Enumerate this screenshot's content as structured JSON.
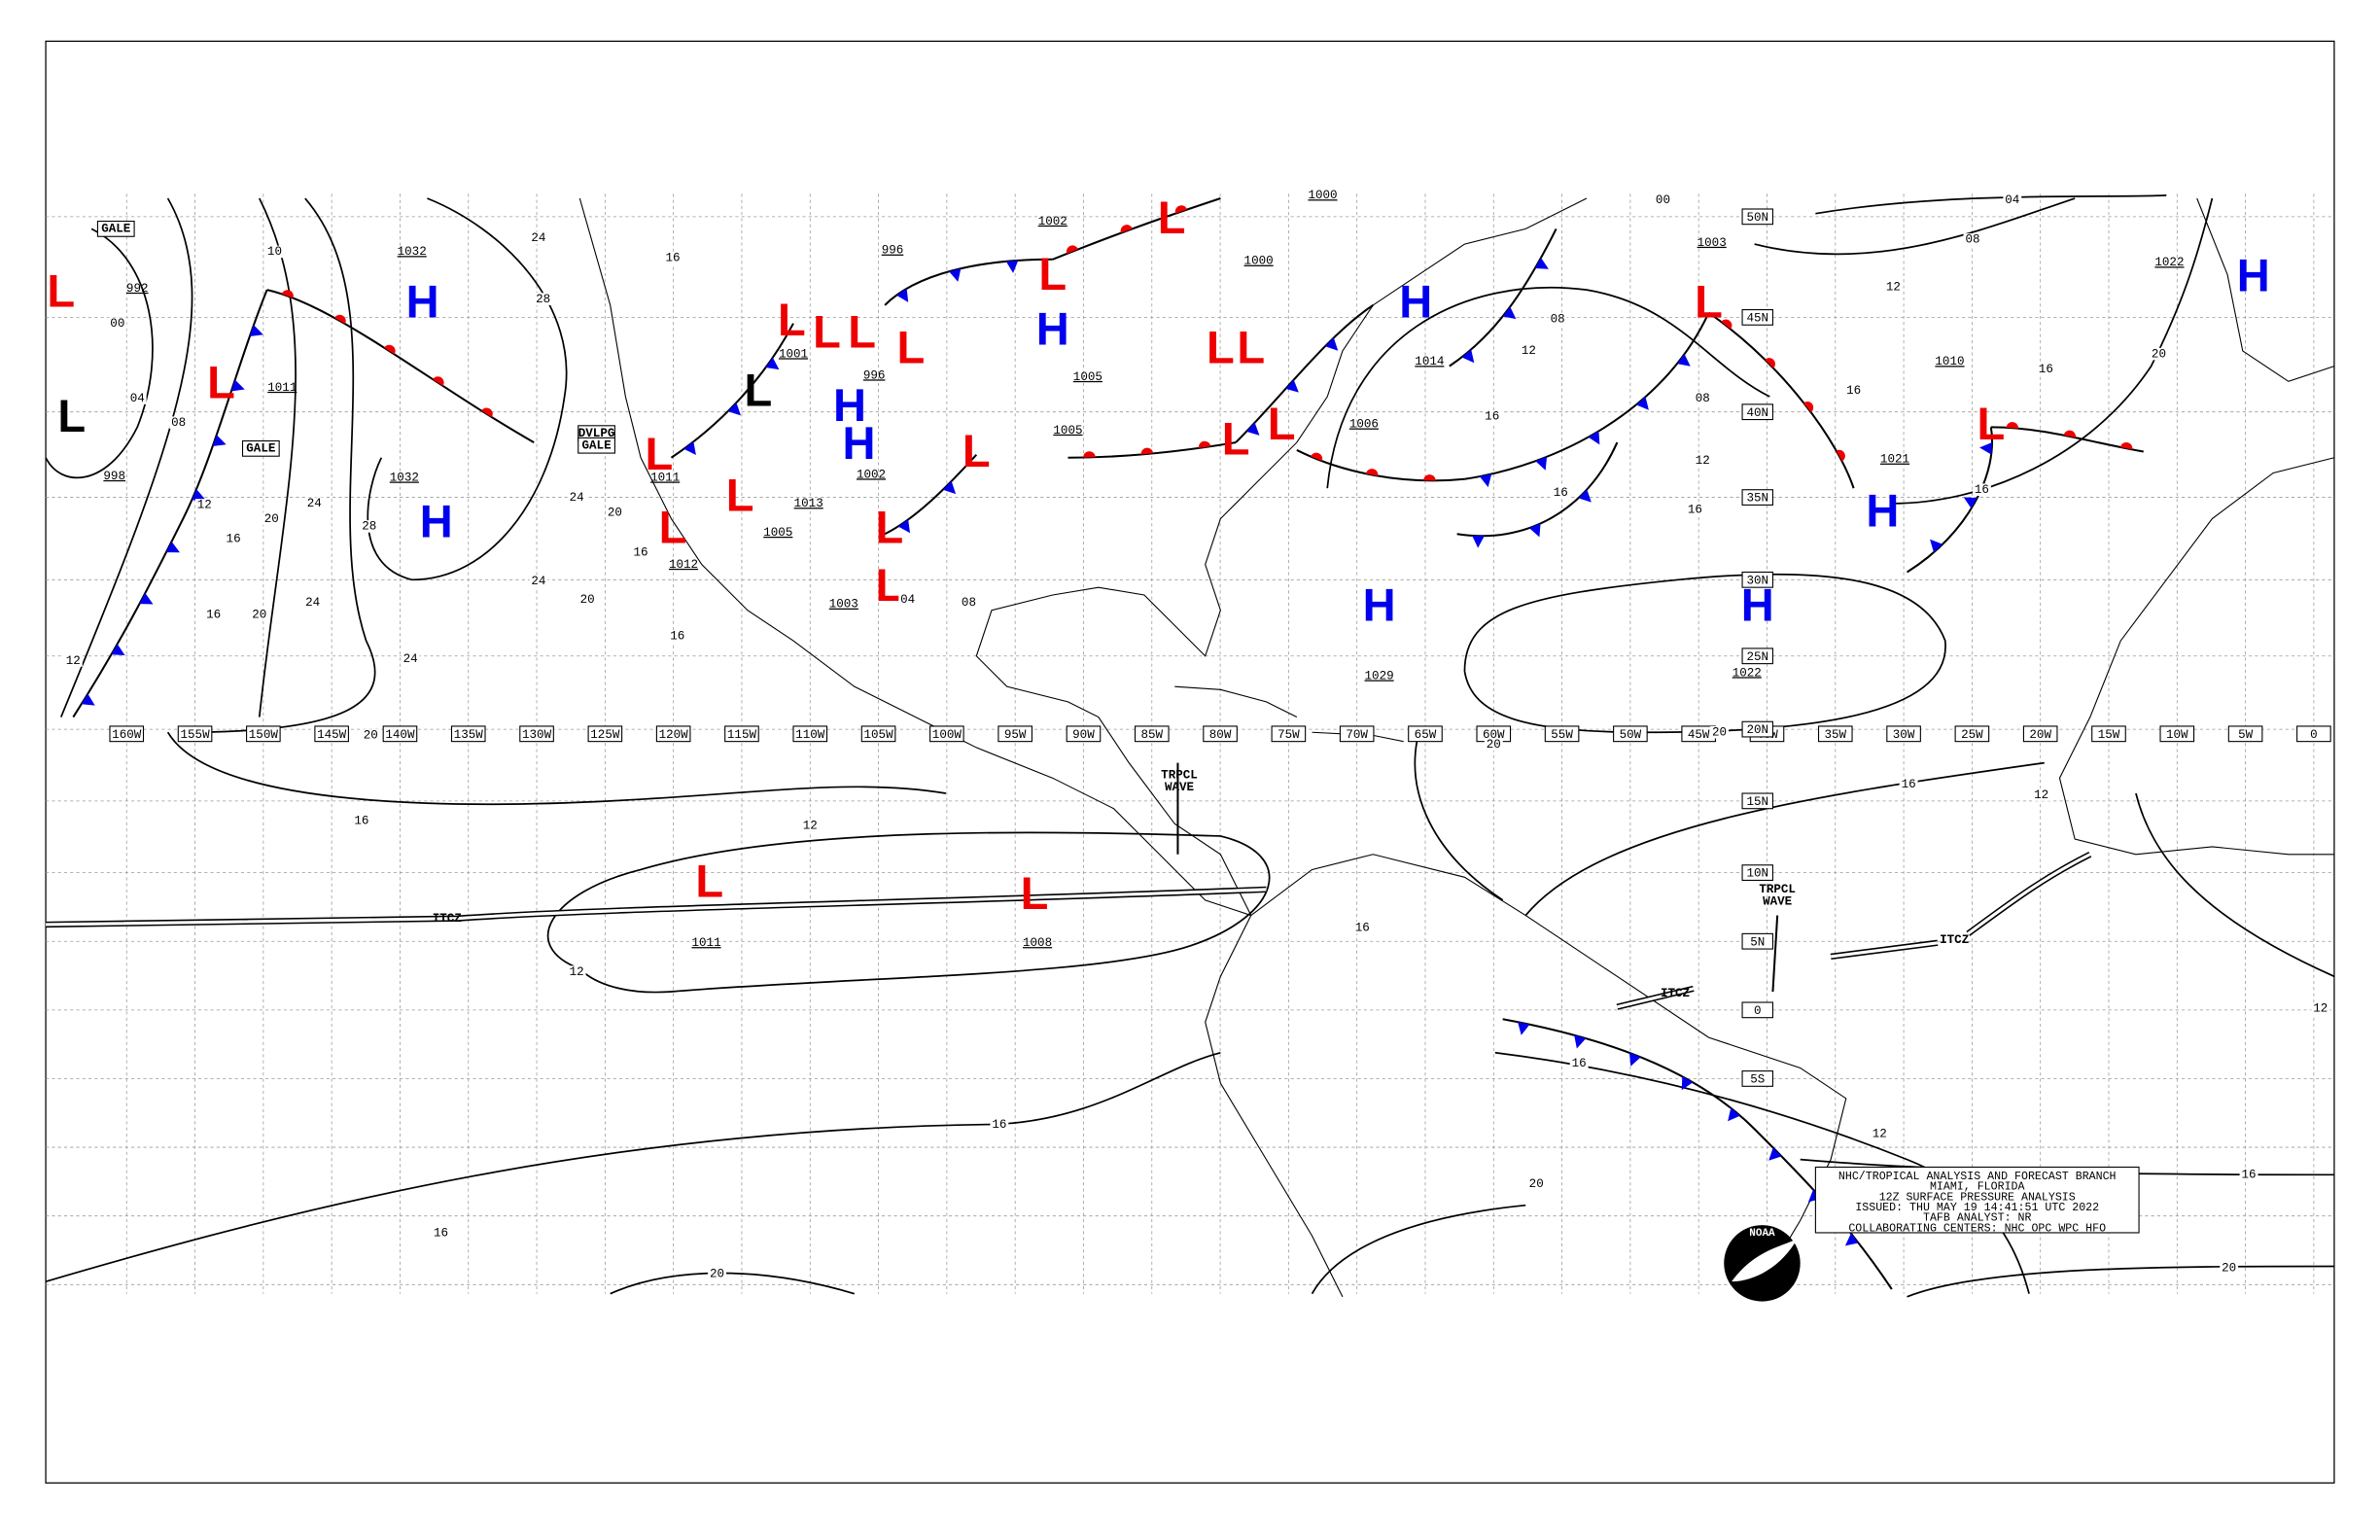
{
  "map": {
    "longitudes": [
      "160W",
      "155W",
      "150W",
      "145W",
      "140W",
      "135W",
      "130W",
      "125W",
      "120W",
      "115W",
      "110W",
      "105W",
      "100W",
      "95W",
      "90W",
      "85W",
      "80W",
      "75W",
      "70W",
      "65W",
      "60W",
      "55W",
      "50W",
      "45W",
      "40W",
      "35W",
      "30W",
      "25W",
      "20W",
      "15W",
      "10W",
      "5W",
      "0"
    ],
    "latitudes": [
      "50N",
      "45N",
      "40N",
      "35N",
      "30N",
      "25N",
      "20N",
      "15N",
      "10N",
      "5N",
      "0",
      "5S"
    ],
    "systems": [
      {
        "label": "H",
        "color": "#0000ee"
      },
      {
        "label": "H",
        "color": "#0000ee"
      },
      {
        "label": "H",
        "color": "#0000ee"
      },
      {
        "label": "H",
        "color": "#0000ee"
      },
      {
        "label": "H",
        "color": "#0000ee"
      },
      {
        "label": "H",
        "color": "#0000ee"
      },
      {
        "label": "H",
        "color": "#0000ee"
      },
      {
        "label": "H",
        "color": "#0000ee"
      },
      {
        "label": "H",
        "color": "#0000ee"
      },
      {
        "label": "H",
        "color": "#0000ee"
      },
      {
        "label": "L",
        "color": "#ee0000"
      },
      {
        "label": "L",
        "color": "#ee0000"
      },
      {
        "label": "L",
        "color": "#ee0000"
      },
      {
        "label": "L",
        "color": "#ee0000"
      },
      {
        "label": "L",
        "color": "#ee0000"
      },
      {
        "label": "L",
        "color": "#ee0000"
      },
      {
        "label": "L",
        "color": "#ee0000"
      },
      {
        "label": "L",
        "color": "#ee0000"
      },
      {
        "label": "L",
        "color": "#ee0000"
      },
      {
        "label": "L",
        "color": "#ee0000"
      },
      {
        "label": "L",
        "color": "#ee0000"
      },
      {
        "label": "L",
        "color": "#ee0000"
      },
      {
        "label": "L",
        "color": "#ee0000"
      },
      {
        "label": "L",
        "color": "#ee0000"
      },
      {
        "label": "L",
        "color": "#ee0000"
      },
      {
        "label": "L",
        "color": "#ee0000"
      },
      {
        "label": "L",
        "color": "#ee0000"
      },
      {
        "label": "L",
        "color": "#ee0000"
      },
      {
        "label": "L",
        "color": "#ee0000"
      },
      {
        "label": "L",
        "color": "#ee0000"
      },
      {
        "label": "L",
        "color": "#ee0000"
      },
      {
        "label": "L",
        "color": "#ee0000"
      },
      {
        "label": "L",
        "color": "#000000"
      },
      {
        "label": "L",
        "color": "#000000"
      }
    ],
    "pressures": [
      "1032",
      "1032",
      "1011",
      "992",
      "998",
      "1000",
      "1003",
      "1010",
      "1021",
      "1022",
      "1029",
      "1022",
      "1006",
      "1014",
      "1002",
      "1000",
      "1011",
      "1008",
      "1012",
      "1003",
      "1002",
      "1005",
      "1013",
      "1001",
      "1005",
      "996",
      "1011",
      "1005",
      "996"
    ],
    "isobar_labels": [
      "24",
      "28",
      "16",
      "24",
      "24",
      "20",
      "24",
      "28",
      "20",
      "16",
      "12",
      "08",
      "04",
      "00",
      "12",
      "16",
      "20",
      "24",
      "24",
      "20",
      "16",
      "16",
      "16",
      "20",
      "12",
      "12",
      "16",
      "16",
      "20",
      "16",
      "20",
      "16",
      "12",
      "16",
      "20",
      "12",
      "12",
      "16",
      "20",
      "16",
      "12",
      "08",
      "16",
      "16",
      "12",
      "08",
      "16",
      "16",
      "20",
      "08",
      "04",
      "12",
      "16",
      "00",
      "20",
      "10",
      "04",
      "08"
    ],
    "annotations": [
      "GALE",
      "GALE",
      "DVLPG",
      "GALE",
      "TRPCL",
      "WAVE",
      "TRPCL",
      "WAVE",
      "ITCZ",
      "ITCZ",
      "ITCZ"
    ]
  },
  "info": {
    "lines": [
      "NHC/TROPICAL ANALYSIS AND FORECAST BRANCH",
      "MIAMI, FLORIDA",
      "12Z SURFACE PRESSURE ANALYSIS",
      "ISSUED: THU MAY 19 14:41:51 UTC 2022",
      "TAFB ANALYST: NR",
      "COLLABORATING CENTERS: NHC OPC WPC HFO"
    ],
    "logo": "NOAA"
  }
}
